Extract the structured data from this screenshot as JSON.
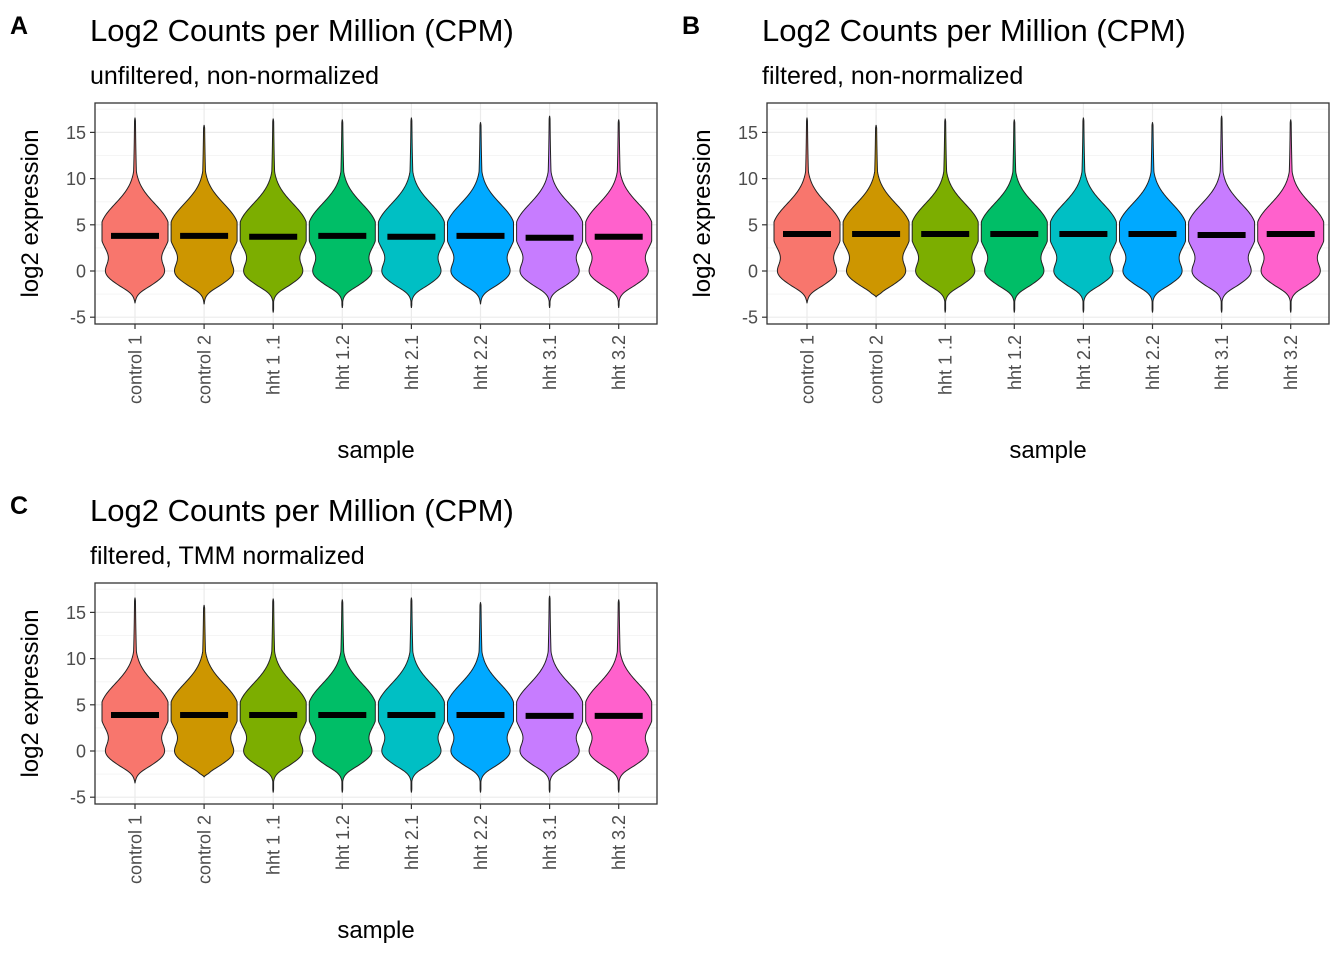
{
  "colors": {
    "samples": [
      "#F8766D",
      "#CD9600",
      "#7CAE00",
      "#00BE67",
      "#00BFC4",
      "#00A9FF",
      "#C77CFF",
      "#FF61CC"
    ],
    "median": "#000000",
    "panel_border": "#333333",
    "grid_major": "#ebebeb",
    "grid_minor": "#f5f5f5"
  },
  "chart_data": [
    {
      "tag": "A",
      "type": "violin",
      "title": "Log2 Counts per Million (CPM)",
      "subtitle": "unfiltered, non-normalized",
      "xlabel": "sample",
      "ylabel": "log2 expression",
      "categories": [
        "control 1",
        "control 2",
        "hht 1 .1",
        "hht 1.2",
        "hht 2.1",
        "hht 2.2",
        "hht 3.1",
        "hht 3.2"
      ],
      "yticks": [
        "15",
        "10",
        "5",
        "0",
        "-5"
      ],
      "ylim": [
        -5.5,
        18
      ],
      "grid": true,
      "max": [
        16.6,
        15.8,
        16.5,
        16.4,
        16.6,
        16.1,
        16.8,
        16.4
      ],
      "min": [
        -3.5,
        -3.6,
        -4.5,
        -4.0,
        -4.0,
        -3.6,
        -4.0,
        -4.0
      ],
      "medians": [
        3.8,
        3.8,
        3.7,
        3.8,
        3.7,
        3.8,
        3.6,
        3.7
      ]
    },
    {
      "tag": "B",
      "type": "violin",
      "title": "Log2 Counts per Million (CPM)",
      "subtitle": "filtered, non-normalized",
      "xlabel": "sample",
      "ylabel": "log2 expression",
      "categories": [
        "control 1",
        "control 2",
        "hht 1 .1",
        "hht 1.2",
        "hht 2.1",
        "hht 2.2",
        "hht 3.1",
        "hht 3.2"
      ],
      "yticks": [
        "15",
        "10",
        "5",
        "0",
        "-5"
      ],
      "ylim": [
        -5.5,
        18
      ],
      "grid": true,
      "max": [
        16.6,
        15.8,
        16.5,
        16.4,
        16.6,
        16.1,
        16.8,
        16.4
      ],
      "min": [
        -3.5,
        -2.8,
        -4.5,
        -4.5,
        -4.5,
        -4.5,
        -4.5,
        -4.5
      ],
      "medians": [
        4.0,
        4.0,
        4.0,
        4.0,
        4.0,
        4.0,
        3.9,
        4.0
      ]
    },
    {
      "tag": "C",
      "type": "violin",
      "title": "Log2 Counts per Million (CPM)",
      "subtitle": "filtered, TMM normalized",
      "xlabel": "sample",
      "ylabel": "log2 expression",
      "categories": [
        "control 1",
        "control 2",
        "hht 1 .1",
        "hht 1.2",
        "hht 2.1",
        "hht 2.2",
        "hht 3.1",
        "hht 3.2"
      ],
      "yticks": [
        "15",
        "10",
        "5",
        "0",
        "-5"
      ],
      "ylim": [
        -5.5,
        18
      ],
      "grid": true,
      "max": [
        16.6,
        15.8,
        16.5,
        16.4,
        16.6,
        16.1,
        16.8,
        16.4
      ],
      "min": [
        -3.5,
        -2.8,
        -4.5,
        -4.5,
        -4.5,
        -4.5,
        -4.5,
        -4.5
      ],
      "medians": [
        3.9,
        3.9,
        3.9,
        3.9,
        3.9,
        3.9,
        3.8,
        3.8
      ]
    }
  ]
}
